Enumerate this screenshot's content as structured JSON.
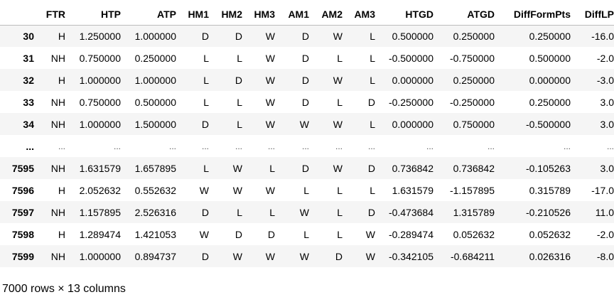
{
  "table": {
    "columns": [
      "",
      "FTR",
      "HTP",
      "ATP",
      "HM1",
      "HM2",
      "HM3",
      "AM1",
      "AM2",
      "AM3",
      "HTGD",
      "ATGD",
      "DiffFormPts",
      "DiffLP"
    ],
    "rows": [
      [
        "30",
        "H",
        "1.250000",
        "1.000000",
        "D",
        "D",
        "W",
        "D",
        "W",
        "L",
        "0.500000",
        "0.250000",
        "0.250000",
        "-16.0"
      ],
      [
        "31",
        "NH",
        "0.750000",
        "0.250000",
        "L",
        "L",
        "W",
        "D",
        "L",
        "L",
        "-0.500000",
        "-0.750000",
        "0.500000",
        "-2.0"
      ],
      [
        "32",
        "H",
        "1.000000",
        "1.000000",
        "L",
        "D",
        "W",
        "D",
        "W",
        "L",
        "0.000000",
        "0.250000",
        "0.000000",
        "-3.0"
      ],
      [
        "33",
        "NH",
        "0.750000",
        "0.500000",
        "L",
        "L",
        "W",
        "D",
        "L",
        "D",
        "-0.250000",
        "-0.250000",
        "0.250000",
        "3.0"
      ],
      [
        "34",
        "NH",
        "1.000000",
        "1.500000",
        "D",
        "L",
        "W",
        "W",
        "W",
        "L",
        "0.000000",
        "0.750000",
        "-0.500000",
        "3.0"
      ],
      [
        "...",
        "...",
        "...",
        "...",
        "...",
        "...",
        "...",
        "...",
        "...",
        "...",
        "...",
        "...",
        "...",
        "..."
      ],
      [
        "7595",
        "NH",
        "1.631579",
        "1.657895",
        "L",
        "W",
        "L",
        "D",
        "W",
        "D",
        "0.736842",
        "0.736842",
        "-0.105263",
        "3.0"
      ],
      [
        "7596",
        "H",
        "2.052632",
        "0.552632",
        "W",
        "W",
        "W",
        "L",
        "L",
        "L",
        "1.631579",
        "-1.157895",
        "0.315789",
        "-17.0"
      ],
      [
        "7597",
        "NH",
        "1.157895",
        "2.526316",
        "D",
        "L",
        "L",
        "W",
        "L",
        "D",
        "-0.473684",
        "1.315789",
        "-0.210526",
        "11.0"
      ],
      [
        "7598",
        "H",
        "1.289474",
        "1.421053",
        "W",
        "D",
        "D",
        "L",
        "L",
        "W",
        "-0.289474",
        "0.052632",
        "0.052632",
        "-2.0"
      ],
      [
        "7599",
        "NH",
        "1.000000",
        "0.894737",
        "D",
        "W",
        "W",
        "W",
        "D",
        "W",
        "-0.342105",
        "-0.684211",
        "0.026316",
        "-8.0"
      ]
    ]
  },
  "shape_text": "7000 rows × 13 columns"
}
